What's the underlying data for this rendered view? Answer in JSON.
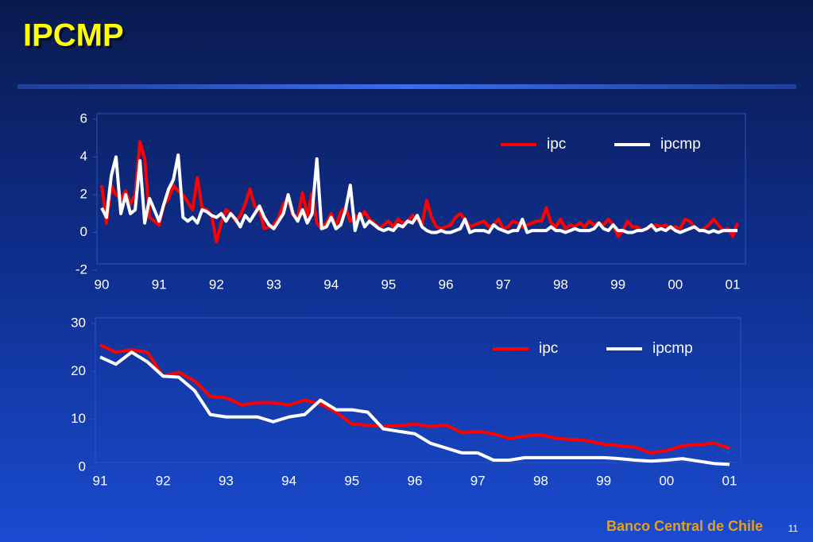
{
  "slide": {
    "title": "IPCMP",
    "footer": "Banco Central de Chile",
    "page": "11"
  },
  "chart_data": [
    {
      "type": "line",
      "categories": [
        "90",
        null,
        null,
        null,
        null,
        null,
        null,
        null,
        null,
        null,
        null,
        null,
        "91",
        null,
        null,
        null,
        null,
        null,
        null,
        null,
        null,
        null,
        null,
        null,
        "92",
        null,
        null,
        null,
        null,
        null,
        null,
        null,
        null,
        null,
        null,
        null,
        "93",
        null,
        null,
        null,
        null,
        null,
        null,
        null,
        null,
        null,
        null,
        null,
        "94",
        null,
        null,
        null,
        null,
        null,
        null,
        null,
        null,
        null,
        null,
        null,
        "95",
        null,
        null,
        null,
        null,
        null,
        null,
        null,
        null,
        null,
        null,
        null,
        "96",
        null,
        null,
        null,
        null,
        null,
        null,
        null,
        null,
        null,
        null,
        null,
        "97",
        null,
        null,
        null,
        null,
        null,
        null,
        null,
        null,
        null,
        null,
        null,
        "98",
        null,
        null,
        null,
        null,
        null,
        null,
        null,
        null,
        null,
        null,
        null,
        "99",
        null,
        null,
        null,
        null,
        null,
        null,
        null,
        null,
        null,
        null,
        null,
        "00",
        null,
        null,
        null,
        null,
        null,
        null,
        null,
        null,
        null,
        null,
        null,
        "01",
        null
      ],
      "series": [
        {
          "name": "ipc",
          "color": "#ff0000",
          "values": [
            2.5,
            0.5,
            2.5,
            2.0,
            1.8,
            2.2,
            1.5,
            2.0,
            4.8,
            3.9,
            0.8,
            0.6,
            0.4,
            1.5,
            1.8,
            2.5,
            2.2,
            2.0,
            1.6,
            1.2,
            2.9,
            1.3,
            1.2,
            0.9,
            -0.5,
            0.5,
            1.2,
            1.0,
            0.6,
            0.9,
            1.5,
            2.3,
            1.4,
            1.2,
            0.2,
            0.3,
            0.4,
            0.8,
            1.5,
            1.8,
            0.9,
            0.8,
            2.1,
            0.9,
            2.1,
            0.5,
            0.2,
            0.5,
            1.0,
            0.3,
            1.1,
            1.3,
            0.6,
            0.9,
            0.7,
            1.1,
            0.7,
            0.5,
            0.2,
            0.4,
            0.6,
            0.3,
            0.7,
            0.5,
            0.6,
            0.9,
            0.7,
            0.4,
            1.7,
            0.8,
            0.3,
            0.2,
            0.3,
            0.4,
            0.8,
            1.0,
            0.7,
            0.3,
            0.4,
            0.5,
            0.6,
            0.3,
            0.4,
            0.7,
            0.2,
            0.3,
            0.6,
            0.5,
            0.3,
            0.4,
            0.5,
            0.6,
            0.6,
            1.3,
            0.5,
            0.3,
            0.7,
            0.2,
            0.4,
            0.3,
            0.5,
            0.3,
            0.6,
            0.4,
            0.5,
            0.4,
            0.7,
            0.4,
            -0.2,
            0.1,
            0.6,
            0.3,
            0.3,
            0.1,
            0.2,
            0.3,
            0.4,
            0.3,
            0.4,
            0.2,
            0.3,
            0.2,
            0.7,
            0.6,
            0.3,
            0.1,
            0.2,
            0.4,
            0.7,
            0.4,
            0.1,
            0.2,
            -0.2,
            0.5
          ]
        },
        {
          "name": "ipcmp",
          "color": "#ffffff",
          "values": [
            1.3,
            0.8,
            3.0,
            4.0,
            1.0,
            2.0,
            1.0,
            1.2,
            3.8,
            0.5,
            1.8,
            1.2,
            0.6,
            1.5,
            2.3,
            2.8,
            4.1,
            0.8,
            0.6,
            0.8,
            0.5,
            1.2,
            1.1,
            0.9,
            0.8,
            1.0,
            0.6,
            1.0,
            0.7,
            0.3,
            0.9,
            0.6,
            1.0,
            1.4,
            0.8,
            0.4,
            0.2,
            0.6,
            1.0,
            2.0,
            1.0,
            0.6,
            1.2,
            0.5,
            1.0,
            3.9,
            0.2,
            0.3,
            0.8,
            0.2,
            0.4,
            1.2,
            2.5,
            0.1,
            1.0,
            0.3,
            0.6,
            0.4,
            0.2,
            0.1,
            0.2,
            0.1,
            0.4,
            0.3,
            0.6,
            0.5,
            0.9,
            0.3,
            0.1,
            0.0,
            0.0,
            0.1,
            0.0,
            0.0,
            0.1,
            0.2,
            0.7,
            0.0,
            0.1,
            0.1,
            0.1,
            0.0,
            0.4,
            0.2,
            0.1,
            0.0,
            0.1,
            0.1,
            0.7,
            0.0,
            0.1,
            0.1,
            0.1,
            0.1,
            0.3,
            0.1,
            0.1,
            0.0,
            0.1,
            0.2,
            0.1,
            0.1,
            0.1,
            0.2,
            0.5,
            0.2,
            0.1,
            0.4,
            0.1,
            0.1,
            0.0,
            0.0,
            0.1,
            0.1,
            0.2,
            0.4,
            0.1,
            0.2,
            0.1,
            0.3,
            0.1,
            0.0,
            0.1,
            0.2,
            0.3,
            0.1,
            0.1,
            0.0,
            0.1,
            0.0,
            0.1,
            0.1,
            0.1,
            0.1
          ]
        }
      ],
      "ylim": [
        -2,
        6
      ],
      "yticks": [
        -2,
        0,
        2,
        4,
        6
      ],
      "legend": "upper right"
    },
    {
      "type": "line",
      "categories": [
        "91",
        null,
        null,
        null,
        "92",
        null,
        null,
        null,
        "93",
        null,
        null,
        null,
        "94",
        null,
        null,
        null,
        "95",
        null,
        null,
        null,
        "96",
        null,
        null,
        null,
        "97",
        null,
        null,
        null,
        "98",
        null,
        null,
        null,
        "99",
        null,
        null,
        null,
        "00",
        null,
        null,
        null,
        "01"
      ],
      "series": [
        {
          "name": "ipc",
          "color": "#ff0000",
          "values": [
            25.5,
            24,
            24.5,
            24,
            19,
            19.8,
            18,
            14.8,
            14.5,
            13,
            13.5,
            13.5,
            13,
            14,
            13.2,
            11.5,
            9,
            8.8,
            8.5,
            8.7,
            9,
            8.5,
            8.8,
            7.2,
            7.5,
            7,
            6,
            6.5,
            6.8,
            6,
            5.8,
            5.5,
            4.8,
            4.5,
            4.2,
            3,
            3.5,
            4.5,
            4.7,
            5,
            4
          ]
        },
        {
          "name": "ipcmp",
          "color": "#ffffff",
          "values": [
            23,
            21.5,
            24,
            22,
            19,
            18.8,
            16,
            11,
            10.5,
            10.5,
            10.5,
            9.5,
            10.5,
            11,
            14,
            12,
            12,
            11.5,
            8,
            7.5,
            7,
            5,
            4,
            3,
            3,
            1.5,
            1.5,
            2,
            2,
            2,
            2,
            2,
            2,
            1.8,
            1.5,
            1.3,
            1.5,
            1.8,
            1.3,
            0.8,
            0.6
          ]
        }
      ],
      "ylim": [
        0,
        30
      ],
      "yticks": [
        0,
        10,
        20,
        30
      ],
      "legend": "upper right"
    }
  ]
}
